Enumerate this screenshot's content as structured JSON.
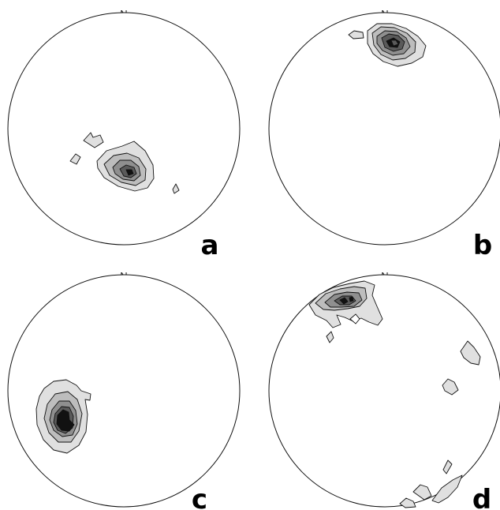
{
  "panels": [
    {
      "id": "a",
      "north_label": "N",
      "letter": "a"
    },
    {
      "id": "b",
      "north_label": "N",
      "letter": "b"
    },
    {
      "id": "c",
      "north_label": "N",
      "letter": "c"
    },
    {
      "id": "d",
      "north_label": "N",
      "letter": "d"
    }
  ]
}
